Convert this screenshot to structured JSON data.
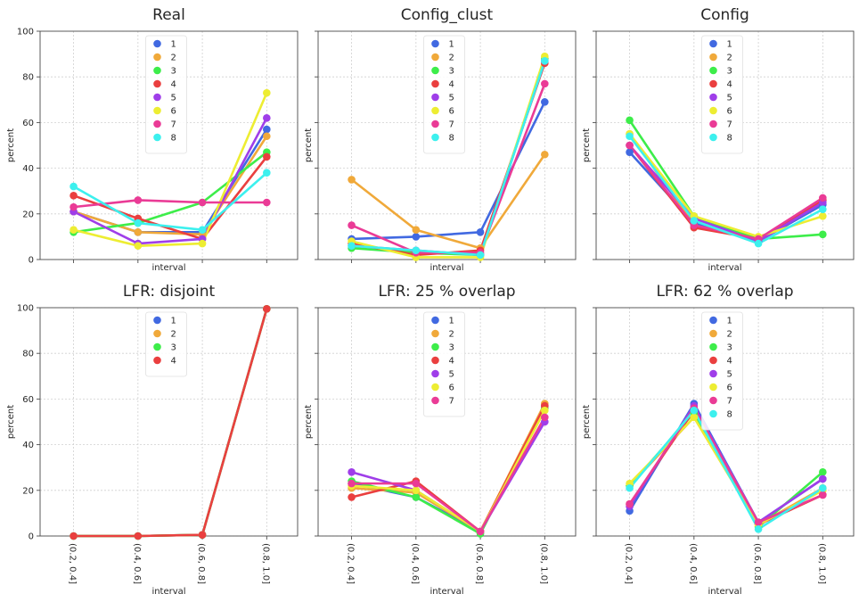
{
  "figure": {
    "xlabel": "interval",
    "ylabel": "percent",
    "categories": [
      "(0.2, 0.4]",
      "(0.4, 0.6]",
      "(0.6, 0.8]",
      "(0.8, 1.0]"
    ],
    "yticks": [
      "0",
      "20",
      "40",
      "60",
      "80",
      "100"
    ],
    "ylim": [
      0,
      100
    ],
    "grid": true,
    "legend_position": "top-center",
    "palette": [
      "#4169e1",
      "#f0a93a",
      "#3ded4a",
      "#ea3f3f",
      "#9f3ee9",
      "#eded32",
      "#ea3b96",
      "#3cf0ee"
    ]
  },
  "chart_data": [
    {
      "type": "line",
      "title": "Real",
      "categories": [
        "(0.2, 0.4]",
        "(0.4, 0.6]",
        "(0.6, 0.8]",
        "(0.8, 1.0]"
      ],
      "series": [
        {
          "name": "1",
          "values": [
            21,
            12,
            12,
            57
          ]
        },
        {
          "name": "2",
          "values": [
            21,
            12,
            11,
            54
          ]
        },
        {
          "name": "3",
          "values": [
            12,
            16,
            25,
            47
          ]
        },
        {
          "name": "4",
          "values": [
            28,
            18,
            9,
            45
          ]
        },
        {
          "name": "5",
          "values": [
            21,
            7,
            9,
            62
          ]
        },
        {
          "name": "6",
          "values": [
            13,
            6,
            7,
            73
          ]
        },
        {
          "name": "7",
          "values": [
            23,
            26,
            25,
            25
          ]
        },
        {
          "name": "8",
          "values": [
            32,
            16,
            13,
            38
          ]
        }
      ]
    },
    {
      "type": "line",
      "title": "Config_clust",
      "categories": [
        "(0.2, 0.4]",
        "(0.4, 0.6]",
        "(0.6, 0.8]",
        "(0.8, 1.0]"
      ],
      "series": [
        {
          "name": "1",
          "values": [
            9,
            10,
            12,
            69
          ]
        },
        {
          "name": "2",
          "values": [
            35,
            13,
            5,
            46
          ]
        },
        {
          "name": "3",
          "values": [
            5,
            3,
            2,
            88
          ]
        },
        {
          "name": "4",
          "values": [
            7,
            2,
            4,
            86
          ]
        },
        {
          "name": "5",
          "values": [
            6,
            4,
            2,
            87
          ]
        },
        {
          "name": "6",
          "values": [
            8,
            1,
            1,
            89
          ]
        },
        {
          "name": "7",
          "values": [
            15,
            3,
            3,
            77
          ]
        },
        {
          "name": "8",
          "values": [
            6,
            4,
            2,
            87
          ]
        }
      ]
    },
    {
      "type": "line",
      "title": "Config",
      "categories": [
        "(0.2, 0.4]",
        "(0.4, 0.6]",
        "(0.6, 0.8]",
        "(0.8, 1.0]"
      ],
      "series": [
        {
          "name": "1",
          "values": [
            47,
            16,
            8,
            24
          ]
        },
        {
          "name": "2",
          "values": [
            55,
            15,
            9,
            26
          ]
        },
        {
          "name": "3",
          "values": [
            61,
            19,
            9,
            11
          ]
        },
        {
          "name": "4",
          "values": [
            50,
            14,
            9,
            26
          ]
        },
        {
          "name": "5",
          "values": [
            50,
            18,
            8,
            25
          ]
        },
        {
          "name": "6",
          "values": [
            55,
            19,
            10,
            19
          ]
        },
        {
          "name": "7",
          "values": [
            50,
            15,
            9,
            27
          ]
        },
        {
          "name": "8",
          "values": [
            54,
            17,
            7,
            22
          ]
        }
      ]
    },
    {
      "type": "line",
      "title": "LFR: disjoint",
      "categories": [
        "(0.2, 0.4]",
        "(0.4, 0.6]",
        "(0.6, 0.8]",
        "(0.8, 1.0]"
      ],
      "series": [
        {
          "name": "1",
          "values": [
            0,
            0,
            0.5,
            99.5
          ]
        },
        {
          "name": "2",
          "values": [
            0,
            0,
            0.5,
            99.5
          ]
        },
        {
          "name": "3",
          "values": [
            0,
            0,
            0.5,
            99.5
          ]
        },
        {
          "name": "4",
          "values": [
            0,
            0,
            0.5,
            99.5
          ]
        }
      ]
    },
    {
      "type": "line",
      "title": "LFR: 25 % overlap",
      "categories": [
        "(0.2, 0.4]",
        "(0.4, 0.6]",
        "(0.6, 0.8]",
        "(0.8, 1.0]"
      ],
      "series": [
        {
          "name": "1",
          "values": [
            23,
            17,
            2,
            57
          ]
        },
        {
          "name": "2",
          "values": [
            21,
            19,
            2,
            58
          ]
        },
        {
          "name": "3",
          "values": [
            24,
            17,
            1,
            56
          ]
        },
        {
          "name": "4",
          "values": [
            17,
            24,
            2,
            57
          ]
        },
        {
          "name": "5",
          "values": [
            28,
            20,
            2,
            50
          ]
        },
        {
          "name": "6",
          "values": [
            22,
            20,
            2,
            55
          ]
        },
        {
          "name": "7",
          "values": [
            23,
            23,
            2,
            52
          ]
        }
      ]
    },
    {
      "type": "line",
      "title": "LFR: 62 % overlap",
      "categories": [
        "(0.2, 0.4]",
        "(0.4, 0.6]",
        "(0.6, 0.8]",
        "(0.8, 1.0]"
      ],
      "series": [
        {
          "name": "1",
          "values": [
            11,
            58,
            6,
            25
          ]
        },
        {
          "name": "2",
          "values": [
            22,
            52,
            5,
            21
          ]
        },
        {
          "name": "3",
          "values": [
            22,
            54,
            4,
            28
          ]
        },
        {
          "name": "4",
          "values": [
            14,
            55,
            5,
            18
          ]
        },
        {
          "name": "5",
          "values": [
            13,
            57,
            6,
            25
          ]
        },
        {
          "name": "6",
          "values": [
            23,
            52,
            5,
            20
          ]
        },
        {
          "name": "7",
          "values": [
            14,
            56,
            6,
            18
          ]
        },
        {
          "name": "8",
          "values": [
            21,
            55,
            3,
            21
          ]
        }
      ]
    }
  ]
}
